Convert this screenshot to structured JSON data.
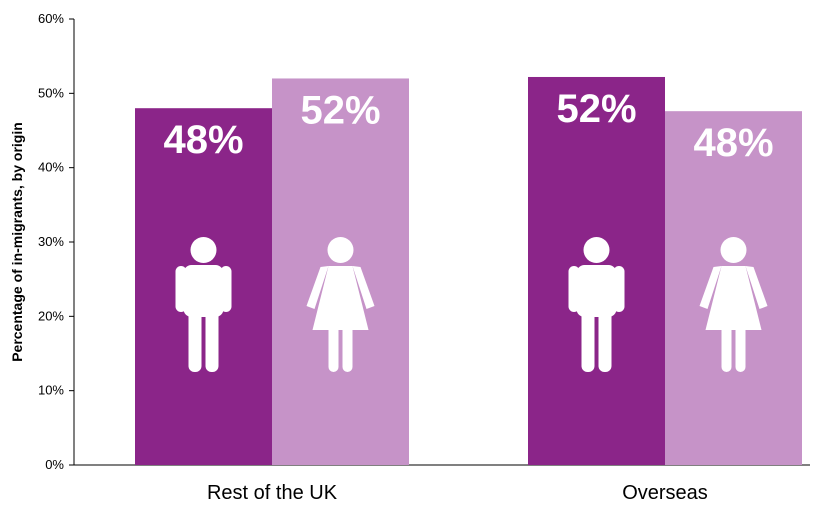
{
  "chart_data": {
    "type": "bar",
    "ylabel": "Percentage of in-migrants, by origin",
    "xlabel": "",
    "ylim": [
      0,
      0.6
    ],
    "y_ticks": [
      0,
      0.1,
      0.2,
      0.3,
      0.4,
      0.5,
      0.6
    ],
    "y_tick_labels": [
      "0%",
      "10%",
      "20%",
      "30%",
      "40%",
      "50%",
      "60%"
    ],
    "categories": [
      "Rest of the UK",
      "Overseas"
    ],
    "series": [
      {
        "values": [
          0.48,
          0.522
        ],
        "labels": [
          "48%",
          "52%"
        ],
        "color": "#8b2589",
        "icon": "male-person-icon"
      },
      {
        "values": [
          0.52,
          0.476
        ],
        "labels": [
          "52%",
          "48%"
        ],
        "color": "#c693c8",
        "icon": "female-person-icon"
      }
    ],
    "grid": false,
    "legend": "none"
  }
}
